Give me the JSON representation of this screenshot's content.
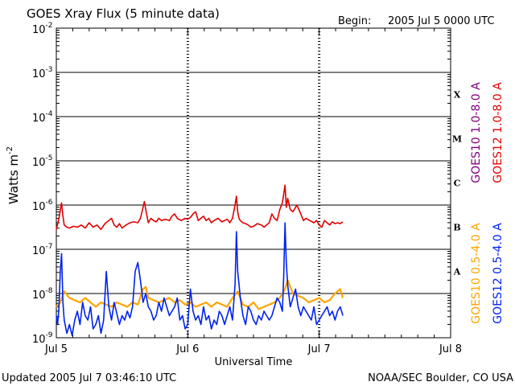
{
  "chart_data": {
    "type": "line",
    "title": "GOES Xray Flux (5 minute data)",
    "begin_label": "Begin:",
    "begin_date": "2005 Jul 5 0000 UTC",
    "xlabel": "Universal Time",
    "ylabel_prefix": "Watts m",
    "ylabel_exp": "-2",
    "x_domain_days": [
      0,
      3
    ],
    "x_ticks": [
      {
        "day": 0,
        "label": "Jul 5"
      },
      {
        "day": 1,
        "label": "Jul 6"
      },
      {
        "day": 2,
        "label": "Jul 7"
      },
      {
        "day": 3,
        "label": "Jul 8"
      }
    ],
    "ylim_log10": [
      -9,
      -2
    ],
    "y_ticks": [
      {
        "exp": -9,
        "mantissa": "10",
        "sup": "-9"
      },
      {
        "exp": -8,
        "mantissa": "10",
        "sup": "-8"
      },
      {
        "exp": -7,
        "mantissa": "10",
        "sup": "-7"
      },
      {
        "exp": -6,
        "mantissa": "10",
        "sup": "-6"
      },
      {
        "exp": -5,
        "mantissa": "10",
        "sup": "-5"
      },
      {
        "exp": -4,
        "mantissa": "10",
        "sup": "-4"
      },
      {
        "exp": -3,
        "mantissa": "10",
        "sup": "-3"
      },
      {
        "exp": -2,
        "mantissa": "10",
        "sup": "-2"
      }
    ],
    "flare_classes": [
      {
        "label": "A",
        "exp": -7.5
      },
      {
        "label": "B",
        "exp": -6.5
      },
      {
        "label": "C",
        "exp": -5.5
      },
      {
        "label": "M",
        "exp": -4.5
      },
      {
        "label": "X",
        "exp": -3.5
      }
    ],
    "legend": [
      {
        "name": "GOES10 1.0-8.0 A",
        "color": "#800080"
      },
      {
        "name": "GOES12 1.0-8.0 A",
        "color": "#e00000"
      },
      {
        "name": "GOES10 0.5-4.0 A",
        "color": "#ffa500"
      },
      {
        "name": "GOES12 0.5-4.0 A",
        "color": "#0022ee"
      }
    ],
    "series": [
      {
        "name": "GOES12 1.0-8.0 A",
        "color": "#e00000",
        "x": [
          0.0,
          0.02,
          0.04,
          0.05,
          0.06,
          0.08,
          0.1,
          0.13,
          0.16,
          0.19,
          0.22,
          0.25,
          0.28,
          0.31,
          0.34,
          0.37,
          0.4,
          0.42,
          0.44,
          0.46,
          0.48,
          0.5,
          0.53,
          0.56,
          0.59,
          0.62,
          0.64,
          0.66,
          0.67,
          0.68,
          0.69,
          0.7,
          0.72,
          0.74,
          0.76,
          0.78,
          0.8,
          0.83,
          0.86,
          0.88,
          0.9,
          0.92,
          0.95,
          0.98,
          1.0,
          1.02,
          1.04,
          1.06,
          1.08,
          1.1,
          1.12,
          1.14,
          1.16,
          1.18,
          1.2,
          1.23,
          1.26,
          1.28,
          1.3,
          1.32,
          1.34,
          1.36,
          1.37,
          1.38,
          1.39,
          1.4,
          1.42,
          1.44,
          1.46,
          1.48,
          1.5,
          1.53,
          1.56,
          1.58,
          1.6,
          1.62,
          1.64,
          1.66,
          1.68,
          1.7,
          1.72,
          1.73,
          1.74,
          1.75,
          1.76,
          1.78,
          1.8,
          1.83,
          1.86,
          1.88,
          1.9,
          1.93,
          1.96,
          1.98,
          2.0,
          2.02,
          2.04,
          2.06,
          2.08,
          2.1,
          2.12,
          2.14,
          2.16,
          2.18
        ],
        "log": [
          -6.55,
          -6.3,
          -5.95,
          -6.25,
          -6.45,
          -6.5,
          -6.52,
          -6.48,
          -6.5,
          -6.45,
          -6.52,
          -6.4,
          -6.5,
          -6.45,
          -6.55,
          -6.42,
          -6.35,
          -6.3,
          -6.45,
          -6.5,
          -6.42,
          -6.52,
          -6.45,
          -6.4,
          -6.38,
          -6.4,
          -6.3,
          -6.05,
          -5.92,
          -6.1,
          -6.25,
          -6.4,
          -6.3,
          -6.35,
          -6.38,
          -6.3,
          -6.35,
          -6.32,
          -6.35,
          -6.25,
          -6.2,
          -6.3,
          -6.35,
          -6.3,
          -6.32,
          -6.28,
          -6.2,
          -6.15,
          -6.35,
          -6.3,
          -6.25,
          -6.35,
          -6.3,
          -6.4,
          -6.35,
          -6.3,
          -6.38,
          -6.35,
          -6.32,
          -6.4,
          -6.3,
          -6.0,
          -5.8,
          -6.15,
          -6.3,
          -6.35,
          -6.4,
          -6.42,
          -6.45,
          -6.5,
          -6.48,
          -6.42,
          -6.45,
          -6.5,
          -6.45,
          -6.4,
          -6.2,
          -6.3,
          -6.35,
          -6.1,
          -5.95,
          -5.75,
          -5.55,
          -6.05,
          -5.85,
          -6.1,
          -6.15,
          -6.0,
          -6.2,
          -6.35,
          -6.3,
          -6.35,
          -6.4,
          -6.35,
          -6.45,
          -6.5,
          -6.35,
          -6.4,
          -6.45,
          -6.38,
          -6.42,
          -6.4,
          -6.42,
          -6.38
        ]
      },
      {
        "name": "GOES10 0.5-4.0 A",
        "color": "#ffa500",
        "x": [
          0.0,
          0.03,
          0.06,
          0.1,
          0.14,
          0.18,
          0.22,
          0.26,
          0.3,
          0.34,
          0.38,
          0.42,
          0.46,
          0.5,
          0.54,
          0.58,
          0.62,
          0.66,
          0.68,
          0.7,
          0.74,
          0.78,
          0.82,
          0.86,
          0.9,
          0.94,
          0.98,
          1.02,
          1.06,
          1.1,
          1.14,
          1.18,
          1.22,
          1.26,
          1.3,
          1.34,
          1.38,
          1.42,
          1.46,
          1.5,
          1.54,
          1.58,
          1.62,
          1.66,
          1.7,
          1.74,
          1.76,
          1.8,
          1.84,
          1.88,
          1.92,
          1.96,
          2.0,
          2.04,
          2.08,
          2.12,
          2.16,
          2.18
        ],
        "log": [
          -8.3,
          -8.2,
          -7.95,
          -8.1,
          -8.15,
          -8.2,
          -8.1,
          -8.2,
          -8.3,
          -8.2,
          -8.25,
          -8.3,
          -8.2,
          -8.25,
          -8.3,
          -8.2,
          -8.25,
          -7.9,
          -7.85,
          -8.1,
          -8.15,
          -8.2,
          -8.15,
          -8.1,
          -8.2,
          -8.15,
          -8.25,
          -8.2,
          -8.3,
          -8.25,
          -8.2,
          -8.3,
          -8.2,
          -8.25,
          -8.3,
          -8.1,
          -7.95,
          -8.25,
          -8.3,
          -8.2,
          -8.35,
          -8.3,
          -8.25,
          -8.2,
          -8.1,
          -7.9,
          -7.7,
          -8.0,
          -8.05,
          -8.1,
          -8.2,
          -8.15,
          -8.1,
          -8.2,
          -8.15,
          -8.0,
          -7.9,
          -8.1
        ]
      },
      {
        "name": "GOES12 0.5-4.0 A",
        "color": "#0022ee",
        "x": [
          0.0,
          0.01,
          0.02,
          0.03,
          0.04,
          0.05,
          0.06,
          0.08,
          0.1,
          0.12,
          0.14,
          0.16,
          0.18,
          0.2,
          0.22,
          0.24,
          0.26,
          0.28,
          0.3,
          0.32,
          0.34,
          0.36,
          0.38,
          0.4,
          0.42,
          0.44,
          0.46,
          0.48,
          0.5,
          0.52,
          0.54,
          0.56,
          0.58,
          0.6,
          0.62,
          0.64,
          0.66,
          0.68,
          0.7,
          0.72,
          0.74,
          0.76,
          0.78,
          0.8,
          0.82,
          0.84,
          0.86,
          0.88,
          0.9,
          0.92,
          0.94,
          0.96,
          0.98,
          1.0,
          1.02,
          1.04,
          1.06,
          1.08,
          1.1,
          1.12,
          1.14,
          1.16,
          1.18,
          1.2,
          1.22,
          1.24,
          1.26,
          1.28,
          1.3,
          1.32,
          1.34,
          1.36,
          1.37,
          1.38,
          1.4,
          1.42,
          1.44,
          1.46,
          1.48,
          1.5,
          1.52,
          1.54,
          1.56,
          1.58,
          1.6,
          1.62,
          1.64,
          1.66,
          1.68,
          1.7,
          1.72,
          1.73,
          1.74,
          1.75,
          1.76,
          1.78,
          1.8,
          1.82,
          1.84,
          1.86,
          1.88,
          1.9,
          1.92,
          1.94,
          1.96,
          1.98,
          2.0,
          2.02,
          2.04,
          2.06,
          2.08,
          2.1,
          2.12,
          2.14,
          2.16,
          2.18
        ],
        "log": [
          -8.5,
          -8.7,
          -8.3,
          -7.5,
          -7.1,
          -8.2,
          -8.6,
          -8.9,
          -8.7,
          -8.95,
          -8.6,
          -8.4,
          -8.7,
          -8.2,
          -8.5,
          -8.6,
          -8.3,
          -8.8,
          -8.7,
          -8.5,
          -8.9,
          -8.6,
          -7.5,
          -8.3,
          -8.6,
          -8.2,
          -8.45,
          -8.7,
          -8.5,
          -8.6,
          -8.4,
          -8.55,
          -8.3,
          -7.5,
          -7.3,
          -7.7,
          -8.2,
          -8.0,
          -8.3,
          -8.4,
          -8.6,
          -8.5,
          -8.2,
          -8.4,
          -8.1,
          -8.3,
          -8.5,
          -8.4,
          -8.3,
          -8.1,
          -8.6,
          -8.5,
          -8.8,
          -8.7,
          -7.9,
          -8.4,
          -8.6,
          -8.5,
          -8.7,
          -8.3,
          -8.6,
          -8.5,
          -8.8,
          -8.6,
          -8.7,
          -8.4,
          -8.5,
          -8.7,
          -8.5,
          -8.3,
          -8.6,
          -7.8,
          -6.6,
          -7.5,
          -8.1,
          -8.5,
          -8.7,
          -8.3,
          -8.4,
          -8.6,
          -8.7,
          -8.5,
          -8.6,
          -8.4,
          -8.5,
          -8.6,
          -8.5,
          -8.3,
          -8.1,
          -8.2,
          -8.4,
          -7.6,
          -6.4,
          -7.3,
          -7.8,
          -8.3,
          -8.1,
          -7.9,
          -8.3,
          -8.5,
          -8.3,
          -8.4,
          -8.5,
          -8.6,
          -8.3,
          -8.7,
          -8.6,
          -8.5,
          -8.4,
          -8.3,
          -8.5,
          -8.4,
          -8.6,
          -8.4,
          -8.3,
          -8.5
        ]
      }
    ],
    "updated": "Updated 2005 Jul  7 03:46:10 UTC",
    "credit": "NOAA/SEC Boulder, CO USA"
  }
}
